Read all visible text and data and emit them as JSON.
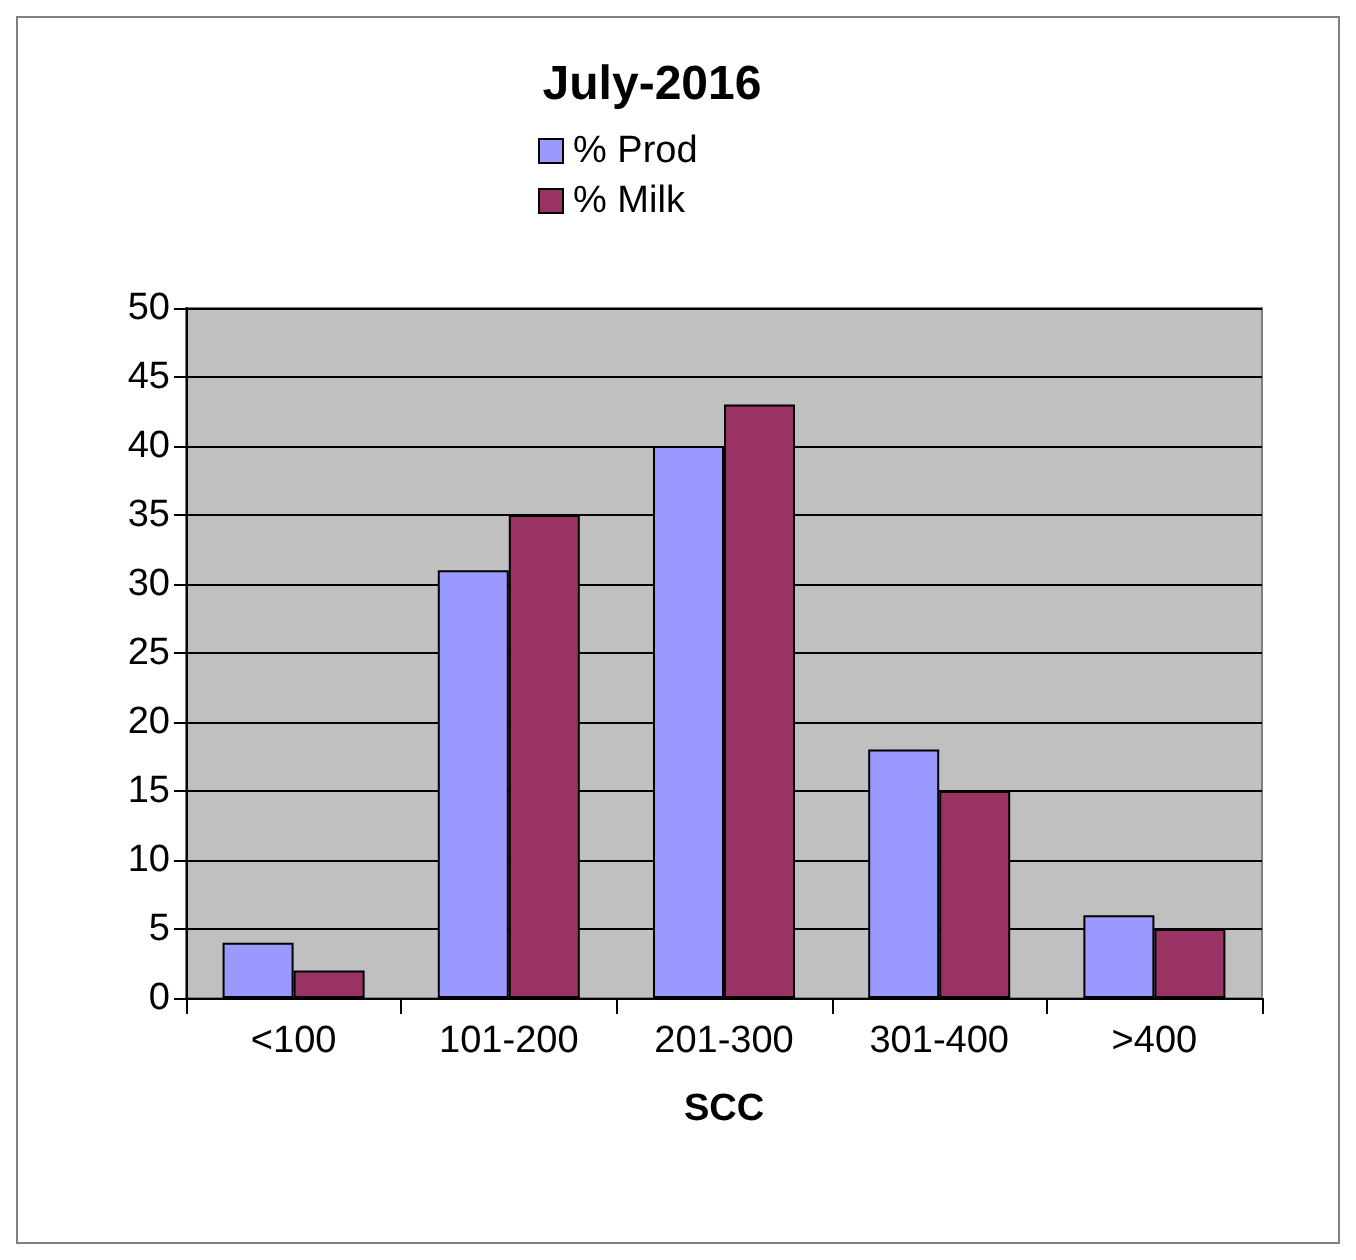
{
  "chart_data": {
    "type": "bar",
    "title": "July-2016",
    "xlabel": "SCC",
    "categories": [
      "<100",
      "101-200",
      "201-300",
      "301-400",
      ">400"
    ],
    "series": [
      {
        "name": "% Prod",
        "color": "#9999ff",
        "values": [
          4,
          31,
          40,
          18,
          6
        ]
      },
      {
        "name": "% Milk",
        "color": "#993366",
        "values": [
          2,
          35,
          43,
          15,
          5
        ]
      }
    ],
    "ylim": [
      0,
      50
    ],
    "yticks": [
      0,
      5,
      10,
      15,
      20,
      25,
      30,
      35,
      40,
      45,
      50
    ],
    "grid": "y",
    "legend": "top"
  }
}
